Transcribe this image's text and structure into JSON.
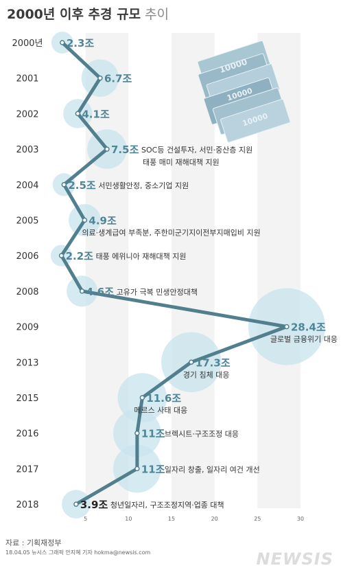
{
  "header": {
    "title_bold": "2000년 이후 추경 규모",
    "title_light": "추이"
  },
  "chart_data": {
    "type": "line",
    "title": "2000년 이후 추경 규모 추이",
    "x_unit": "조",
    "xlim": [
      0,
      30
    ],
    "x_ticks": [
      5,
      10,
      15,
      20,
      25,
      30
    ],
    "grid": "vertical bands",
    "categories": [
      "2000년",
      "2001",
      "2002",
      "2003",
      "2004",
      "2005",
      "2006",
      "2008",
      "2009",
      "2013",
      "2015",
      "2016",
      "2017",
      "2018"
    ],
    "values": [
      2.3,
      6.7,
      4.1,
      7.5,
      2.5,
      4.9,
      2.2,
      4.6,
      28.4,
      17.3,
      11.6,
      11,
      11,
      3.9
    ],
    "value_labels": [
      "2.3조",
      "6.7조",
      "4.1조",
      "7.5조",
      "2.5조",
      "4.9조",
      "2.2조",
      "4.6조",
      "28.4조",
      "17.3조",
      "11.6조",
      "11조",
      "11조",
      "3.9조"
    ],
    "annotations": [
      "",
      "",
      "",
      "SOC등 건설투자, 서민·중산층 지원\n태풍 매미 재해대책 지원",
      "서민생활안정, 중소기업 지원",
      "의료·생계급여 부족분, 주한미군기지이전부지매입비 지원",
      "태풍 에위니아 재해대책 지원",
      "고유가 극복 민생안정대책",
      "글로벌 금융위기 대응",
      "경기 침체 대응",
      "메르스 사태 대응",
      "브렉시트·구조조정 대응",
      "일자리 창출, 일자리 여건 개선",
      "청년일자리, 구조조정지역·업종 대책"
    ],
    "colors": {
      "line": "#527f8d",
      "bubble": "#c8e3ee",
      "label": "#4f8596",
      "grid_band": "#f3f3f3"
    }
  },
  "footer": {
    "source": "자료 : 기획재정부",
    "credit": "18.04.05 뉴시스 그래픽 안지혜 기자 hokma@newsis.com",
    "logo": "NEWSIS"
  }
}
